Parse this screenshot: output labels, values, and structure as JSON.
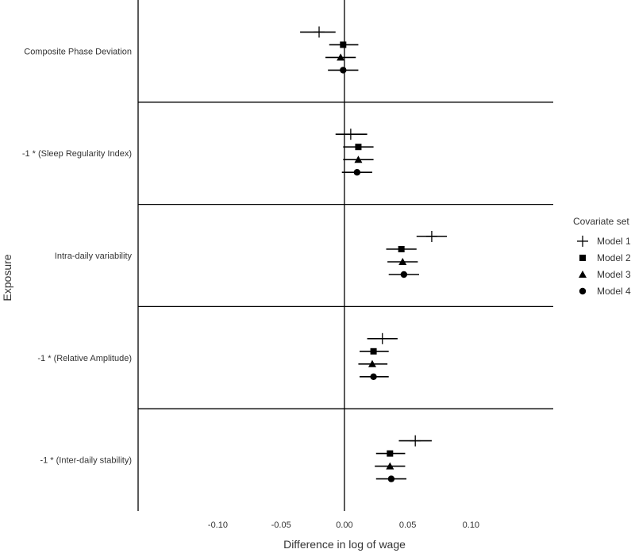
{
  "chart_data": {
    "type": "forest",
    "xlabel": "Difference in log of wage",
    "ylabel": "Exposure",
    "xlim": [
      -0.163,
      0.165
    ],
    "x_ticks": [
      -0.1,
      -0.05,
      0.0,
      0.05,
      0.1
    ],
    "x_tick_labels": [
      "-0.10",
      "-0.05",
      "0.00",
      "0.05",
      "0.10"
    ],
    "reference_line": 0,
    "grid": false,
    "legend": {
      "title": "Covariate set",
      "position": "right",
      "entries": [
        {
          "name": "Model 1",
          "marker": "plus"
        },
        {
          "name": "Model 2",
          "marker": "square"
        },
        {
          "name": "Model 3",
          "marker": "triangle"
        },
        {
          "name": "Model 4",
          "marker": "circle"
        }
      ]
    },
    "categories": [
      "Composite Phase Deviation",
      "-1 * (Sleep Regularity Index)",
      "Intra-daily variability",
      "-1 * (Relative Amplitude)",
      "-1 * (Inter-daily stability)"
    ],
    "series": [
      {
        "name": "Model 1",
        "estimate": [
          -0.02,
          0.005,
          0.069,
          0.03,
          0.056
        ],
        "lower": [
          -0.035,
          -0.007,
          0.057,
          0.018,
          0.043
        ],
        "upper": [
          -0.007,
          0.018,
          0.081,
          0.042,
          0.069
        ]
      },
      {
        "name": "Model 2",
        "estimate": [
          -0.001,
          0.011,
          0.045,
          0.023,
          0.036
        ],
        "lower": [
          -0.012,
          -0.001,
          0.033,
          0.012,
          0.025
        ],
        "upper": [
          0.011,
          0.023,
          0.057,
          0.035,
          0.048
        ]
      },
      {
        "name": "Model 3",
        "estimate": [
          -0.003,
          0.011,
          0.046,
          0.022,
          0.036
        ],
        "lower": [
          -0.015,
          -0.001,
          0.034,
          0.011,
          0.024
        ],
        "upper": [
          0.009,
          0.023,
          0.058,
          0.034,
          0.048
        ]
      },
      {
        "name": "Model 4",
        "estimate": [
          -0.001,
          0.01,
          0.047,
          0.023,
          0.037
        ],
        "lower": [
          -0.013,
          -0.002,
          0.035,
          0.012,
          0.025
        ],
        "upper": [
          0.011,
          0.022,
          0.059,
          0.035,
          0.049
        ]
      }
    ]
  }
}
